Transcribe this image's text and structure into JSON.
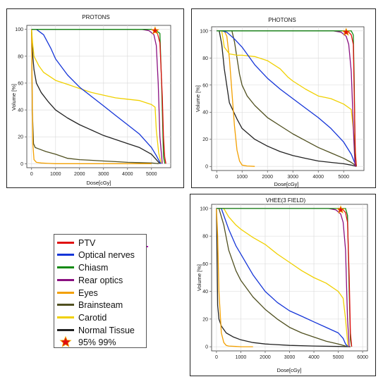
{
  "colors": {
    "PTV": "#e01010",
    "Optical nerves": "#1535d8",
    "Chiasm": "#128a12",
    "Rear optics": "#8a1080",
    "Eyes": "#f3a000",
    "Brainsteam": "#505020",
    "Carotid": "#f0d000",
    "Normal Tissue": "#222222"
  },
  "legend": {
    "items": [
      {
        "label": "PTV",
        "key": "PTV"
      },
      {
        "label": "Optical nerves",
        "key": "Optical nerves"
      },
      {
        "label": "Chiasm",
        "key": "Chiasm"
      },
      {
        "label": "Rear optics",
        "key": "Rear optics"
      },
      {
        "label": "Eyes",
        "key": "Eyes"
      },
      {
        "label": "Brainsteam",
        "key": "Brainsteam"
      },
      {
        "label": "Carotid",
        "key": "Carotid"
      },
      {
        "label": "Normal Tissue",
        "key": "Normal Tissue"
      }
    ],
    "star_label": "95% 99%",
    "star_icon": "star-icon"
  },
  "chart_data": [
    {
      "type": "line",
      "title": "PROTONS",
      "xlabel": "Dose[cGy]",
      "ylabel": "Volume [%]",
      "xlim": [
        -200,
        5800
      ],
      "ylim": [
        -3,
        103
      ],
      "xticks": [
        0,
        1000,
        2000,
        3000,
        4000,
        5000
      ],
      "yticks": [
        0,
        20,
        40,
        60,
        80,
        100
      ],
      "grid": true,
      "marker": {
        "x": 5150,
        "y": 99
      },
      "series": [
        {
          "name": "Chiasm",
          "x": [
            0,
            5000,
            5200,
            5350,
            5420,
            5500,
            5560
          ],
          "y": [
            100,
            100,
            99,
            97,
            60,
            5,
            0
          ]
        },
        {
          "name": "Rear optics",
          "x": [
            0,
            4600,
            4900,
            5100,
            5200,
            5280,
            5350,
            5450
          ],
          "y": [
            100,
            100,
            99,
            96,
            88,
            60,
            20,
            0
          ]
        },
        {
          "name": "PTV",
          "x": [
            5000,
            5150,
            5250,
            5350,
            5450,
            5500,
            5550,
            5600
          ],
          "y": [
            100,
            99,
            97,
            90,
            50,
            20,
            5,
            0
          ]
        },
        {
          "name": "Optical nerves",
          "x": [
            0,
            200,
            500,
            800,
            1000,
            1500,
            2000,
            2500,
            3000,
            3500,
            4000,
            4500,
            5000,
            5200,
            5350,
            5400
          ],
          "y": [
            100,
            100,
            96,
            86,
            78,
            66,
            57,
            50,
            43,
            36,
            29,
            22,
            12,
            6,
            1,
            0
          ]
        },
        {
          "name": "Carotid",
          "x": [
            0,
            40,
            100,
            300,
            500,
            1000,
            1500,
            2000,
            2500,
            3000,
            3500,
            4000,
            4500,
            5000,
            5150,
            5200,
            5300,
            5400
          ],
          "y": [
            100,
            90,
            80,
            73,
            68,
            62,
            59,
            56,
            53,
            51,
            49,
            48,
            47,
            44,
            42,
            25,
            8,
            0
          ]
        },
        {
          "name": "Normal Tissue",
          "x": [
            0,
            20,
            50,
            100,
            200,
            400,
            700,
            1000,
            1500,
            2000,
            2500,
            3000,
            3500,
            4000,
            4500,
            5000,
            5200,
            5350
          ],
          "y": [
            100,
            90,
            80,
            70,
            60,
            53,
            46,
            40,
            34,
            29,
            25,
            21,
            18,
            15,
            12,
            7,
            3,
            0
          ]
        },
        {
          "name": "Brainsteam",
          "x": [
            0,
            30,
            80,
            150,
            300,
            600,
            1000,
            1500,
            2000,
            2500,
            3000,
            3500,
            4000,
            4500,
            5000,
            5200,
            5300
          ],
          "y": [
            100,
            40,
            15,
            12,
            11,
            9,
            7,
            4,
            3,
            2.5,
            2,
            1.5,
            1,
            0.8,
            0.5,
            0.2,
            0
          ]
        },
        {
          "name": "Eyes",
          "x": [
            0,
            20,
            50,
            100,
            200,
            400,
            700,
            1000,
            3000,
            5000
          ],
          "y": [
            100,
            60,
            15,
            3,
            1,
            0.5,
            0.2,
            0,
            0,
            0
          ]
        }
      ]
    },
    {
      "type": "line",
      "title": "PHOTONS",
      "xlabel": "Dose[cGy]",
      "ylabel": "Volume [%]",
      "xlim": [
        -200,
        5800
      ],
      "ylim": [
        -3,
        103
      ],
      "xticks": [
        0,
        1000,
        2000,
        3000,
        4000,
        5000
      ],
      "yticks": [
        0,
        20,
        40,
        60,
        80,
        100
      ],
      "grid": true,
      "marker": {
        "x": 5100,
        "y": 99
      },
      "series": [
        {
          "name": "Chiasm",
          "x": [
            0,
            5300,
            5380,
            5420,
            5450,
            5500
          ],
          "y": [
            100,
            100,
            97,
            60,
            10,
            0
          ]
        },
        {
          "name": "Rear optics",
          "x": [
            0,
            4600,
            4900,
            5100,
            5200,
            5300,
            5400,
            5450
          ],
          "y": [
            100,
            100,
            99,
            96,
            90,
            70,
            20,
            0
          ]
        },
        {
          "name": "PTV",
          "x": [
            5000,
            5200,
            5300,
            5380,
            5420,
            5460,
            5500
          ],
          "y": [
            100,
            99,
            97,
            90,
            50,
            10,
            0
          ]
        },
        {
          "name": "Optical nerves",
          "x": [
            0,
            200,
            400,
            700,
            1000,
            1500,
            2000,
            2500,
            3000,
            3500,
            4000,
            4500,
            5000,
            5300,
            5450,
            5500
          ],
          "y": [
            100,
            100,
            99,
            94,
            88,
            75,
            65,
            57,
            50,
            43,
            36,
            28,
            18,
            9,
            2,
            0
          ]
        },
        {
          "name": "Carotid",
          "x": [
            0,
            200,
            300,
            500,
            800,
            1000,
            1500,
            2000,
            2500,
            2800,
            3000,
            3500,
            4000,
            4500,
            5000,
            5300,
            5450,
            5500
          ],
          "y": [
            100,
            100,
            88,
            83,
            82,
            82,
            81,
            78,
            72,
            66,
            63,
            57,
            52,
            50,
            46,
            42,
            15,
            0
          ]
        },
        {
          "name": "Normal Tissue",
          "x": [
            0,
            100,
            200,
            300,
            500,
            800,
            1000,
            1500,
            2000,
            2500,
            3000,
            3500,
            4000,
            4500,
            5000,
            5300,
            5450,
            5500
          ],
          "y": [
            100,
            100,
            90,
            72,
            47,
            35,
            28,
            20,
            15,
            11,
            8,
            6,
            4,
            3,
            2,
            1,
            0.3,
            0
          ]
        },
        {
          "name": "Brainsteam",
          "x": [
            0,
            600,
            700,
            800,
            900,
            1000,
            1200,
            1500,
            2000,
            2500,
            3000,
            3500,
            4000,
            4500,
            5000,
            5300,
            5450,
            5500
          ],
          "y": [
            100,
            100,
            92,
            80,
            68,
            60,
            52,
            45,
            36,
            30,
            24,
            19,
            14,
            10,
            6,
            3,
            1,
            0
          ]
        },
        {
          "name": "Eyes",
          "x": [
            0,
            300,
            400,
            500,
            600,
            700,
            800,
            900,
            1000,
            1200,
            1500
          ],
          "y": [
            100,
            100,
            96,
            80,
            55,
            30,
            12,
            4,
            1,
            0.3,
            0
          ]
        }
      ]
    },
    {
      "type": "line",
      "title": "VHEE(3 FIELD)",
      "xlabel": "Dose[cGy]",
      "ylabel": "Volume [%]",
      "xlim": [
        -200,
        6200
      ],
      "ylim": [
        -3,
        103
      ],
      "xticks": [
        0,
        1000,
        2000,
        3000,
        4000,
        5000,
        6000
      ],
      "yticks": [
        0,
        20,
        40,
        60,
        80,
        100
      ],
      "grid": true,
      "marker": {
        "x": 5100,
        "y": 99
      },
      "series": [
        {
          "name": "Chiasm",
          "x": [
            0,
            5300,
            5380,
            5450,
            5500,
            5550
          ],
          "y": [
            100,
            100,
            95,
            40,
            5,
            0
          ]
        },
        {
          "name": "Rear optics",
          "x": [
            0,
            4600,
            4900,
            5100,
            5200,
            5300,
            5380,
            5450
          ],
          "y": [
            100,
            100,
            99,
            96,
            90,
            70,
            20,
            0
          ]
        },
        {
          "name": "PTV",
          "x": [
            5000,
            5200,
            5300,
            5380,
            5450,
            5500,
            5550
          ],
          "y": [
            100,
            99,
            97,
            90,
            50,
            10,
            0
          ]
        },
        {
          "name": "Optical nerves",
          "x": [
            0,
            200,
            500,
            800,
            1000,
            1500,
            2000,
            2500,
            3000,
            3500,
            4000,
            4500,
            5000,
            5200,
            5300,
            5400
          ],
          "y": [
            100,
            100,
            85,
            73,
            67,
            52,
            40,
            32,
            26,
            22,
            18,
            14,
            10,
            6,
            2,
            0
          ]
        },
        {
          "name": "Carotid",
          "x": [
            0,
            300,
            500,
            800,
            1000,
            1500,
            2000,
            2500,
            3000,
            3500,
            4000,
            4500,
            5000,
            5200,
            5300,
            5400
          ],
          "y": [
            100,
            100,
            94,
            88,
            85,
            79,
            74,
            67,
            61,
            55,
            50,
            46,
            40,
            35,
            20,
            0
          ]
        },
        {
          "name": "Normal Tissue",
          "x": [
            0,
            50,
            100,
            200,
            400,
            700,
            1000,
            1500,
            2000,
            3000,
            4000,
            5000,
            5500
          ],
          "y": [
            100,
            30,
            20,
            15,
            10,
            7,
            5,
            3,
            2,
            1,
            0.5,
            0.2,
            0
          ]
        },
        {
          "name": "Brainsteam",
          "x": [
            0,
            100,
            300,
            500,
            800,
            1000,
            1500,
            2000,
            2500,
            3000,
            3500,
            4000,
            4500,
            5000,
            5300,
            5500
          ],
          "y": [
            100,
            100,
            88,
            70,
            55,
            48,
            36,
            27,
            20,
            14,
            10,
            7,
            4,
            2,
            0.5,
            0
          ]
        },
        {
          "name": "Eyes",
          "x": [
            0,
            50,
            100,
            200,
            300,
            400,
            500,
            800,
            1000,
            1500
          ],
          "y": [
            100,
            80,
            40,
            10,
            3,
            1,
            0.5,
            0.2,
            0,
            0
          ]
        }
      ]
    }
  ]
}
